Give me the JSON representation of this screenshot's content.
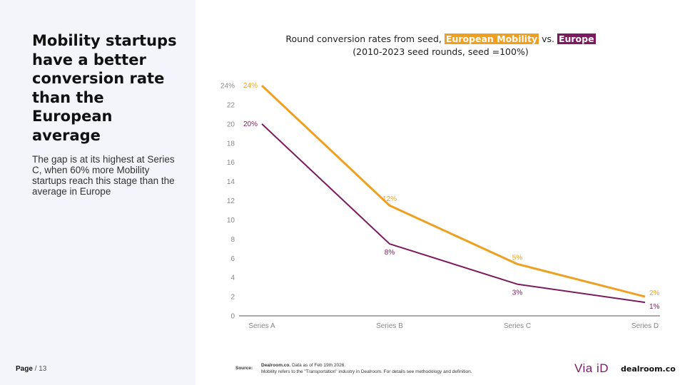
{
  "left": {
    "headline": "Mobility startups have a better conversion rate than the European average",
    "subtext": "The gap is at its highest at Series C, when 60% more Mobility startups reach this stage than the average in Europe",
    "page_label": "Page",
    "page_rest": " / 13"
  },
  "chart_title": {
    "prefix": "Round conversion rates from seed, ",
    "highlight_1": "European Mobility",
    "middle": " vs. ",
    "highlight_2": "Europe",
    "line2": "(2010-2023 seed rounds, seed =100%)"
  },
  "colors": {
    "mobility": "#f0a020",
    "europe": "#7b1a5e",
    "axis": "#555555",
    "panel": "#f4f5fa"
  },
  "chart_data": {
    "type": "line",
    "title": "Round conversion rates from seed, European Mobility vs. Europe",
    "subtitle": "(2010-2023 seed rounds, seed =100%)",
    "categories": [
      "Series A",
      "Series B",
      "Series C",
      "Series D"
    ],
    "ylim": [
      0,
      24
    ],
    "yticks": [
      {
        "value": 0,
        "label": "0"
      },
      {
        "value": 2,
        "label": "2"
      },
      {
        "value": 4,
        "label": "4"
      },
      {
        "value": 6,
        "label": "6"
      },
      {
        "value": 8,
        "label": "8"
      },
      {
        "value": 10,
        "label": "10"
      },
      {
        "value": 12,
        "label": "12"
      },
      {
        "value": 14,
        "label": "14"
      },
      {
        "value": 16,
        "label": "16"
      },
      {
        "value": 18,
        "label": "18"
      },
      {
        "value": 20,
        "label": "20"
      },
      {
        "value": 22,
        "label": "22"
      },
      {
        "value": 24,
        "label": "24%"
      }
    ],
    "grid": false,
    "legend": "in-title",
    "series": [
      {
        "name": "European Mobility",
        "color": "#f0a020",
        "values": [
          24,
          11.5,
          5.4,
          2.0
        ],
        "labels": [
          "24%",
          "12%",
          "5%",
          "2%"
        ]
      },
      {
        "name": "Europe",
        "color": "#7b1a5e",
        "values": [
          20,
          7.5,
          3.3,
          1.4
        ],
        "labels": [
          "20%",
          "8%",
          "3%",
          "1%"
        ]
      }
    ]
  },
  "footer": {
    "source_label": "Source:",
    "source_bold": "Dealroom.co.",
    "source_line1": " Data as of Feb 19th 2026.",
    "source_line2": "Mobility refers to the \"Transportation\" industry in Dealroom. For details see methodology and definition.",
    "logo_via": "Via iD",
    "logo_dealroom": "dealroom.co"
  }
}
